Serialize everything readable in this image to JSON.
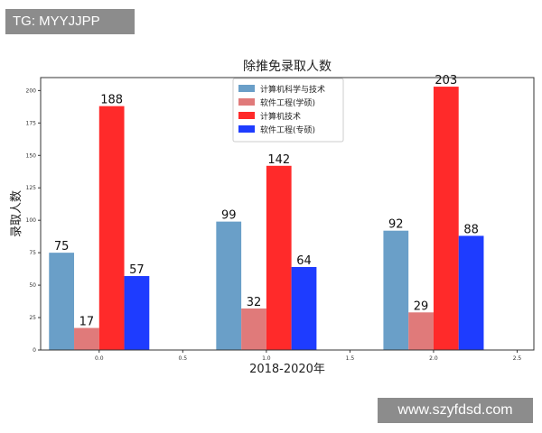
{
  "watermark_top": "TG: MYYJJPP",
  "watermark_bottom": "www.szyfdsd.com",
  "colors": {
    "series_0": "#6a9fc8",
    "series_1": "#e07a7a",
    "series_2": "#ff2a2a",
    "series_3": "#1e3cff"
  },
  "chart_data": {
    "type": "bar",
    "title": "除推免录取人数",
    "xlabel": "2018-2020年",
    "ylabel": "录取人数",
    "ylim": [
      0,
      210
    ],
    "xlim": [
      -0.35,
      2.6
    ],
    "x_ticks": [
      0.0,
      0.5,
      1.0,
      1.5,
      2.0,
      2.5
    ],
    "x_tick_labels": [
      "0.0",
      "0.5",
      "1.0",
      "1.5",
      "2.0",
      "2.5"
    ],
    "y_ticks": [
      0,
      25,
      50,
      75,
      100,
      125,
      150,
      175,
      200
    ],
    "y_tick_labels": [
      "0",
      "25",
      "50",
      "75",
      "100",
      "125",
      "150",
      "175",
      "200"
    ],
    "group_x": [
      0.0,
      1.0,
      2.0
    ],
    "bar_width": 0.15,
    "grid": false,
    "legend_position": "top-center",
    "series": [
      {
        "name": "计算机科学与技术",
        "values": [
          75,
          99,
          92
        ],
        "value_labels": [
          "75",
          "99",
          "92"
        ]
      },
      {
        "name": "软件工程(学硕)",
        "values": [
          17,
          32,
          29
        ],
        "value_labels": [
          "17",
          "32",
          "29"
        ]
      },
      {
        "name": "计算机技术",
        "values": [
          188,
          142,
          203
        ],
        "value_labels": [
          "188",
          "142",
          "203"
        ]
      },
      {
        "name": "软件工程(专硕)",
        "values": [
          57,
          64,
          88
        ],
        "value_labels": [
          "57",
          "64",
          "88"
        ]
      }
    ]
  }
}
